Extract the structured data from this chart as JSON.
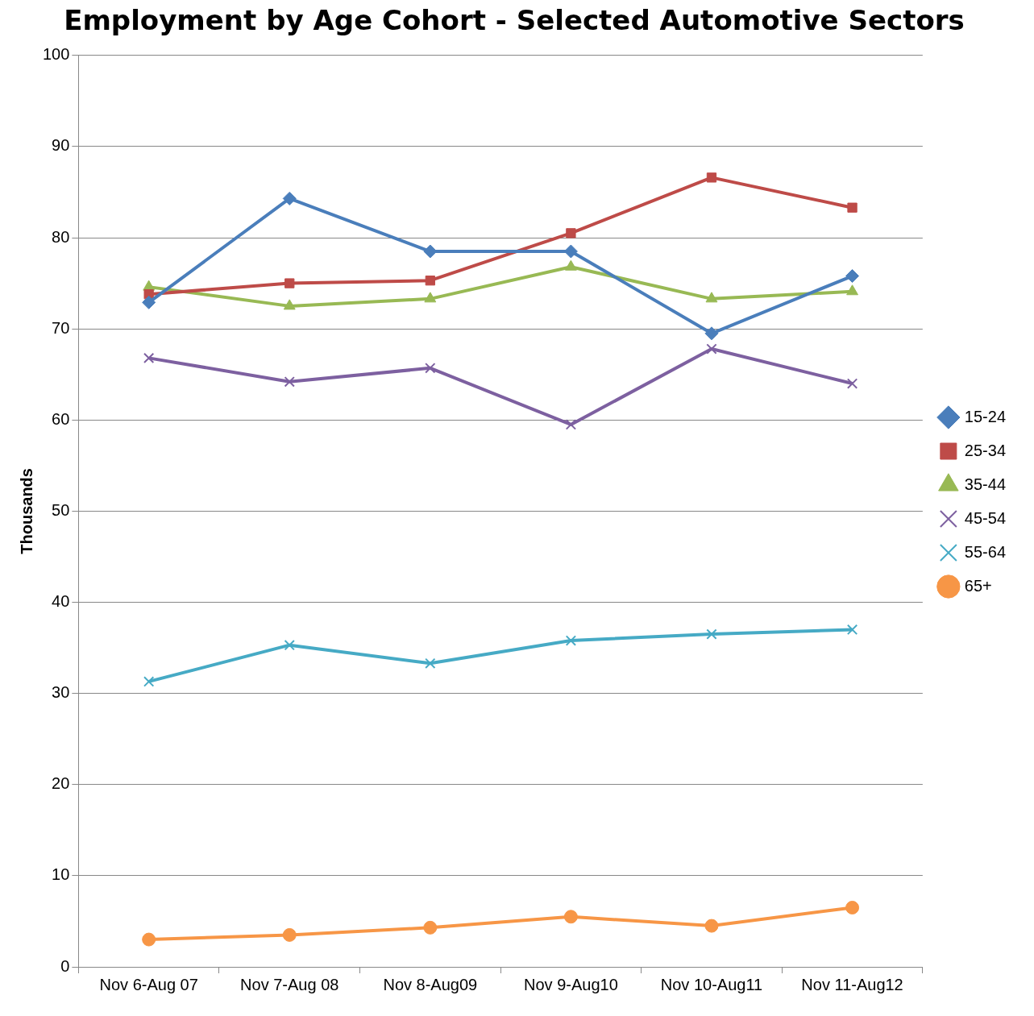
{
  "chart_data": {
    "type": "line",
    "title": "Employment by Age Cohort - Selected Automotive Sectors",
    "ylabel": "Thousands",
    "categories": [
      "Nov 6-Aug 07",
      "Nov 7-Aug 08",
      "Nov 8-Aug09",
      "Nov 9-Aug10",
      "Nov 10-Aug11",
      "Nov 11-Aug12"
    ],
    "series": [
      {
        "name": "15-24",
        "color": "#4a7ebb",
        "marker": "diamond",
        "values": [
          72.9,
          84.3,
          78.5,
          78.5,
          69.5,
          75.8
        ]
      },
      {
        "name": "25-34",
        "color": "#be4b48",
        "marker": "square",
        "values": [
          73.8,
          75.0,
          75.3,
          80.5,
          86.6,
          83.3
        ]
      },
      {
        "name": "35-44",
        "color": "#98b954",
        "marker": "triangle",
        "values": [
          74.6,
          72.5,
          73.3,
          76.8,
          73.3,
          74.1
        ]
      },
      {
        "name": "45-54",
        "color": "#7d60a0",
        "marker": "cross",
        "values": [
          66.8,
          64.2,
          65.7,
          59.5,
          67.8,
          64.0
        ]
      },
      {
        "name": "55-64",
        "color": "#46aac5",
        "marker": "cross",
        "values": [
          31.3,
          35.3,
          33.3,
          35.8,
          36.5,
          37.0
        ]
      },
      {
        "name": "65+",
        "color": "#f79646",
        "marker": "circle",
        "values": [
          3.0,
          3.5,
          4.3,
          5.5,
          4.5,
          6.5
        ]
      }
    ],
    "ylim": [
      0,
      100
    ],
    "yticks": [
      0,
      10,
      20,
      30,
      40,
      50,
      60,
      70,
      80,
      90,
      100
    ],
    "grid": "y",
    "legend": "right"
  }
}
